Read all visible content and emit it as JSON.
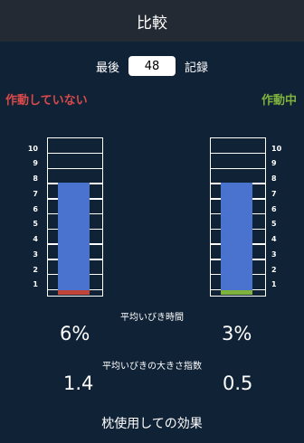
{
  "header": {
    "title": "比較"
  },
  "record": {
    "prefix": "最後",
    "value": "48",
    "suffix": "記録"
  },
  "status": {
    "inactive": "作動していない",
    "active": "作動中"
  },
  "y_ticks": [
    "10",
    "9",
    "8",
    "7",
    "6",
    "5",
    "4",
    "3",
    "2",
    "1"
  ],
  "chart_data": {
    "type": "bar",
    "categories": [
      "作動していない",
      "作動中"
    ],
    "series": [
      {
        "values": [
          7.4,
          7.4
        ],
        "color": "#4a73d0"
      }
    ],
    "base_colors": [
      "#c0443a",
      "#7fb23c"
    ],
    "ylim": [
      0,
      10
    ]
  },
  "snore_time": {
    "label": "平均いびき時間",
    "left": "6%",
    "right": "3%"
  },
  "snore_volume": {
    "label": "平均いびきの大きさ指数",
    "left": "1.4",
    "right": "0.5"
  },
  "footer": {
    "text": "枕使用しての効果"
  }
}
